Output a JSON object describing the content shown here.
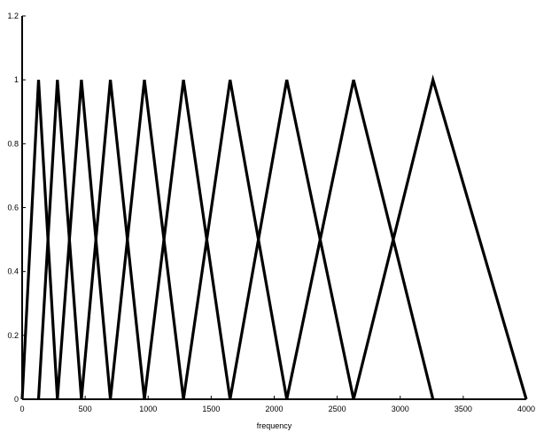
{
  "chart_data": {
    "type": "line",
    "title": "",
    "xlabel": "frequency",
    "ylabel": "",
    "xlim": [
      0,
      4000
    ],
    "ylim": [
      0,
      1.2
    ],
    "x_ticks": [
      0,
      500,
      1000,
      1500,
      2000,
      2500,
      3000,
      3500,
      4000
    ],
    "x_tick_labels": [
      "0",
      "500",
      "1000",
      "1500",
      "2000",
      "2500",
      "3000",
      "3500",
      "4000"
    ],
    "y_ticks": [
      0,
      0.2,
      0.4,
      0.6,
      0.8,
      1,
      1.2
    ],
    "y_tick_labels": [
      "0",
      "0.2",
      "0.4",
      "0.6",
      "0.8",
      "1",
      "1.2"
    ],
    "grid": false,
    "legend": "none",
    "line_color": "#000000",
    "series": [
      {
        "x": [
          0,
          130,
          280
        ],
        "y": [
          0,
          1,
          0
        ]
      },
      {
        "x": [
          130,
          280,
          470
        ],
        "y": [
          0,
          1,
          0
        ]
      },
      {
        "x": [
          280,
          470,
          700
        ],
        "y": [
          0,
          1,
          0
        ]
      },
      {
        "x": [
          470,
          700,
          970
        ],
        "y": [
          0,
          1,
          0
        ]
      },
      {
        "x": [
          700,
          970,
          1280
        ],
        "y": [
          0,
          1,
          0
        ]
      },
      {
        "x": [
          970,
          1280,
          1650
        ],
        "y": [
          0,
          1,
          0
        ]
      },
      {
        "x": [
          1280,
          1650,
          2100
        ],
        "y": [
          0,
          1,
          0
        ]
      },
      {
        "x": [
          1650,
          2100,
          2630
        ],
        "y": [
          0,
          1,
          0
        ]
      },
      {
        "x": [
          2100,
          2630,
          3260
        ],
        "y": [
          0,
          1,
          0
        ]
      },
      {
        "x": [
          2630,
          3260,
          4000
        ],
        "y": [
          0,
          1,
          0
        ]
      }
    ]
  }
}
